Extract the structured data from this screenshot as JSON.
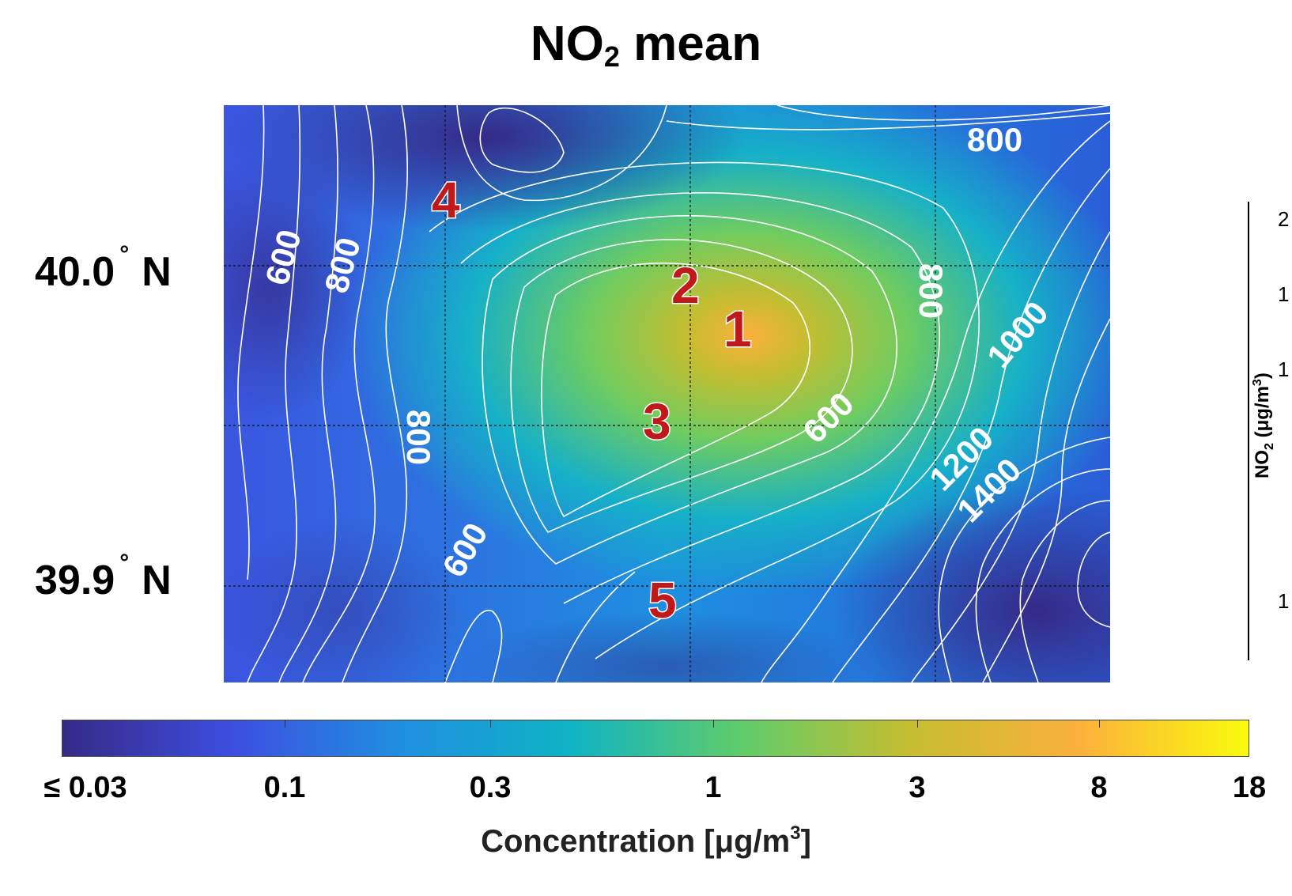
{
  "chart_data": {
    "type": "heatmap",
    "title": "NO",
    "title_sub": "2",
    "title_rest": " mean",
    "y_tick_labels": [
      {
        "value": "40.0",
        "deg": "°",
        "hemi": "N"
      },
      {
        "value": "39.9",
        "deg": "°",
        "hemi": "N"
      }
    ],
    "colorbar": {
      "tick_labels": [
        "≤ 0.03",
        "0.1",
        "0.3",
        "1",
        "3",
        "8",
        "18"
      ],
      "label": "Concentration [μg/m",
      "label_sup": "3",
      "label_end": "]",
      "colors": [
        "#352a87",
        "#3d4ee0",
        "#1f8fe0",
        "#0fb3c4",
        "#5fcc6a",
        "#c6bd30",
        "#fbb03b",
        "#f9fb0e"
      ]
    },
    "contour_labels": [
      "800",
      "600",
      "800",
      "800",
      "1000",
      "600",
      "800",
      "1200",
      "1400",
      "600"
    ],
    "site_markers": [
      "4",
      "2",
      "1",
      "3",
      "5"
    ],
    "side_axis": {
      "label": "NO",
      "label_sub": "2",
      "label_rest": " (μg/m",
      "label_sup": "3",
      "label_end": ")",
      "tick_labels": [
        "2",
        "1",
        "1",
        "1"
      ]
    }
  }
}
